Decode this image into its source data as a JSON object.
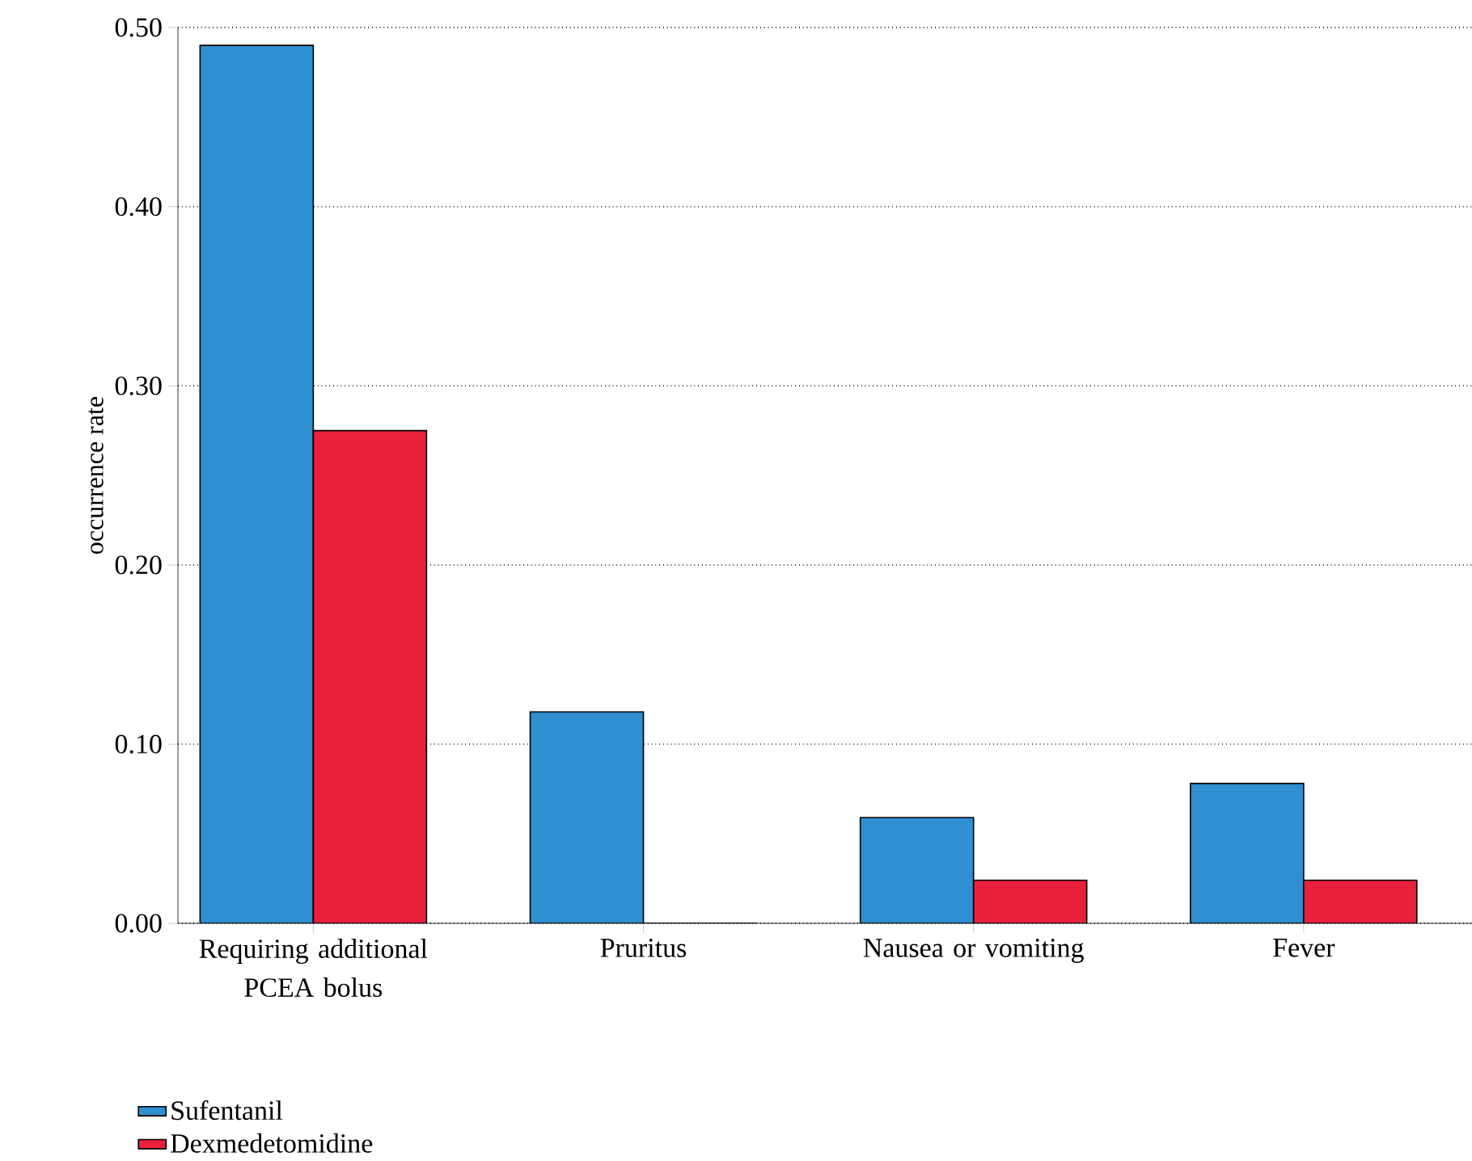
{
  "chart_data": {
    "type": "bar",
    "ylabel": "occurrence rate",
    "categories": [
      "Requiring additional PCEA bolus",
      "Pruritus",
      "Nausea or vomiting",
      "Fever"
    ],
    "series": [
      {
        "name": "Sufentanil",
        "color": "#2f8fd0",
        "values": [
          0.49,
          0.118,
          0.059,
          0.078
        ]
      },
      {
        "name": "Dexmedetomidine",
        "color": "#e8203a",
        "values": [
          0.275,
          0,
          0.024,
          0.024
        ]
      }
    ],
    "ylim": [
      0,
      0.5
    ],
    "yticks": [
      {
        "value": 0,
        "label": "0.00"
      },
      {
        "value": 0.1,
        "label": "0.10"
      },
      {
        "value": 0.2,
        "label": "0.20"
      },
      {
        "value": 0.3,
        "label": "0.30"
      },
      {
        "value": 0.4,
        "label": "0.40"
      },
      {
        "value": 0.5,
        "label": "0.50"
      }
    ],
    "grid": "y",
    "legend": "bottom left"
  }
}
